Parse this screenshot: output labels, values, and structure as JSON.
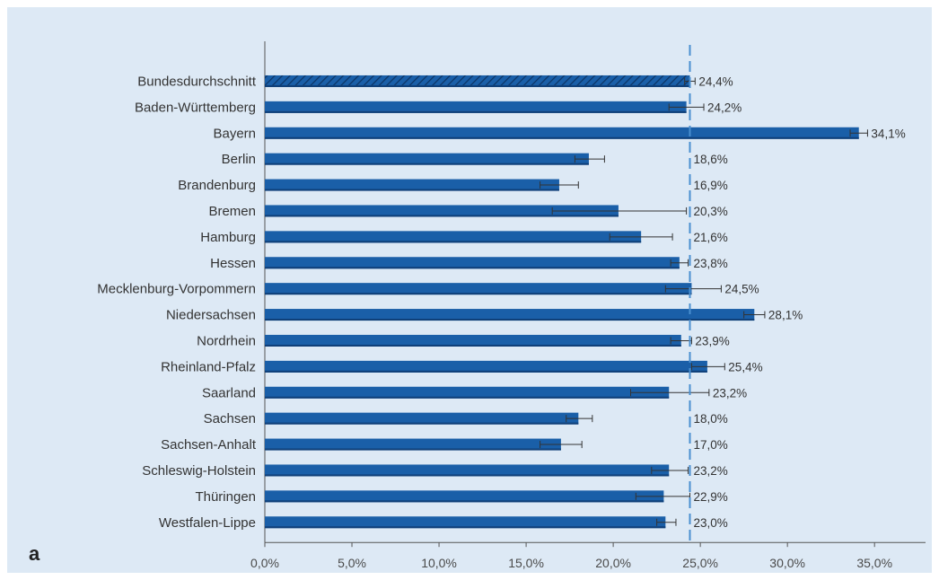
{
  "chart_data": {
    "type": "bar",
    "orientation": "horizontal",
    "panel_label": "a",
    "categories": [
      "Bundesdurchschnitt",
      "Baden-Württemberg",
      "Bayern",
      "Berlin",
      "Brandenburg",
      "Bremen",
      "Hamburg",
      "Hessen",
      "Mecklenburg-Vorpommern",
      "Niedersachsen",
      "Nordrhein",
      "Rheinland-Pfalz",
      "Saarland",
      "Sachsen",
      "Sachsen-Anhalt",
      "Schleswig-Holstein",
      "Thüringen",
      "Westfalen-Lippe"
    ],
    "values": [
      24.4,
      24.2,
      34.1,
      18.6,
      16.9,
      20.3,
      21.6,
      23.8,
      24.5,
      28.1,
      23.9,
      25.4,
      23.2,
      18.0,
      17.0,
      23.2,
      22.9,
      23.0
    ],
    "value_labels": [
      "24,4%",
      "24,2%",
      "34,1%",
      "18,6%",
      "16,9%",
      "20,3%",
      "21,6%",
      "23,8%",
      "24,5%",
      "28,1%",
      "23,9%",
      "25,4%",
      "23,2%",
      "18,0%",
      "17,0%",
      "23,2%",
      "22,9%",
      "23,0%"
    ],
    "error_low": [
      24.1,
      23.2,
      33.6,
      17.8,
      15.8,
      16.5,
      19.8,
      23.3,
      23.0,
      27.5,
      23.3,
      24.5,
      21.0,
      17.3,
      15.8,
      22.2,
      21.3,
      22.5
    ],
    "error_high": [
      24.7,
      25.2,
      34.6,
      19.5,
      18.0,
      24.2,
      23.4,
      24.3,
      26.2,
      28.7,
      24.5,
      26.4,
      25.5,
      18.8,
      18.2,
      24.3,
      24.4,
      23.6
    ],
    "bar_pattern": [
      "hatched",
      "solid",
      "solid",
      "solid",
      "solid",
      "solid",
      "solid",
      "solid",
      "solid",
      "solid",
      "solid",
      "solid",
      "solid",
      "solid",
      "solid",
      "solid",
      "solid",
      "solid"
    ],
    "reference_line": {
      "value": 24.4,
      "style": "dashed",
      "color": "#4a8fd0"
    },
    "xlim": [
      0,
      37
    ],
    "xticks": [
      0,
      5,
      10,
      15,
      20,
      25,
      30,
      35
    ],
    "xtick_labels": [
      "0,0%",
      "5,0%",
      "10,0%",
      "15,0%",
      "20,0%",
      "25,0%",
      "30,0%",
      "35,0%"
    ],
    "xlabel": "",
    "ylabel": "",
    "grid": false,
    "colors": {
      "background": "#dde9f5",
      "bar": "#1a5fa8",
      "bar_shade": "#0f3f78",
      "axis": "#555555",
      "error_bar": "#333333"
    }
  }
}
